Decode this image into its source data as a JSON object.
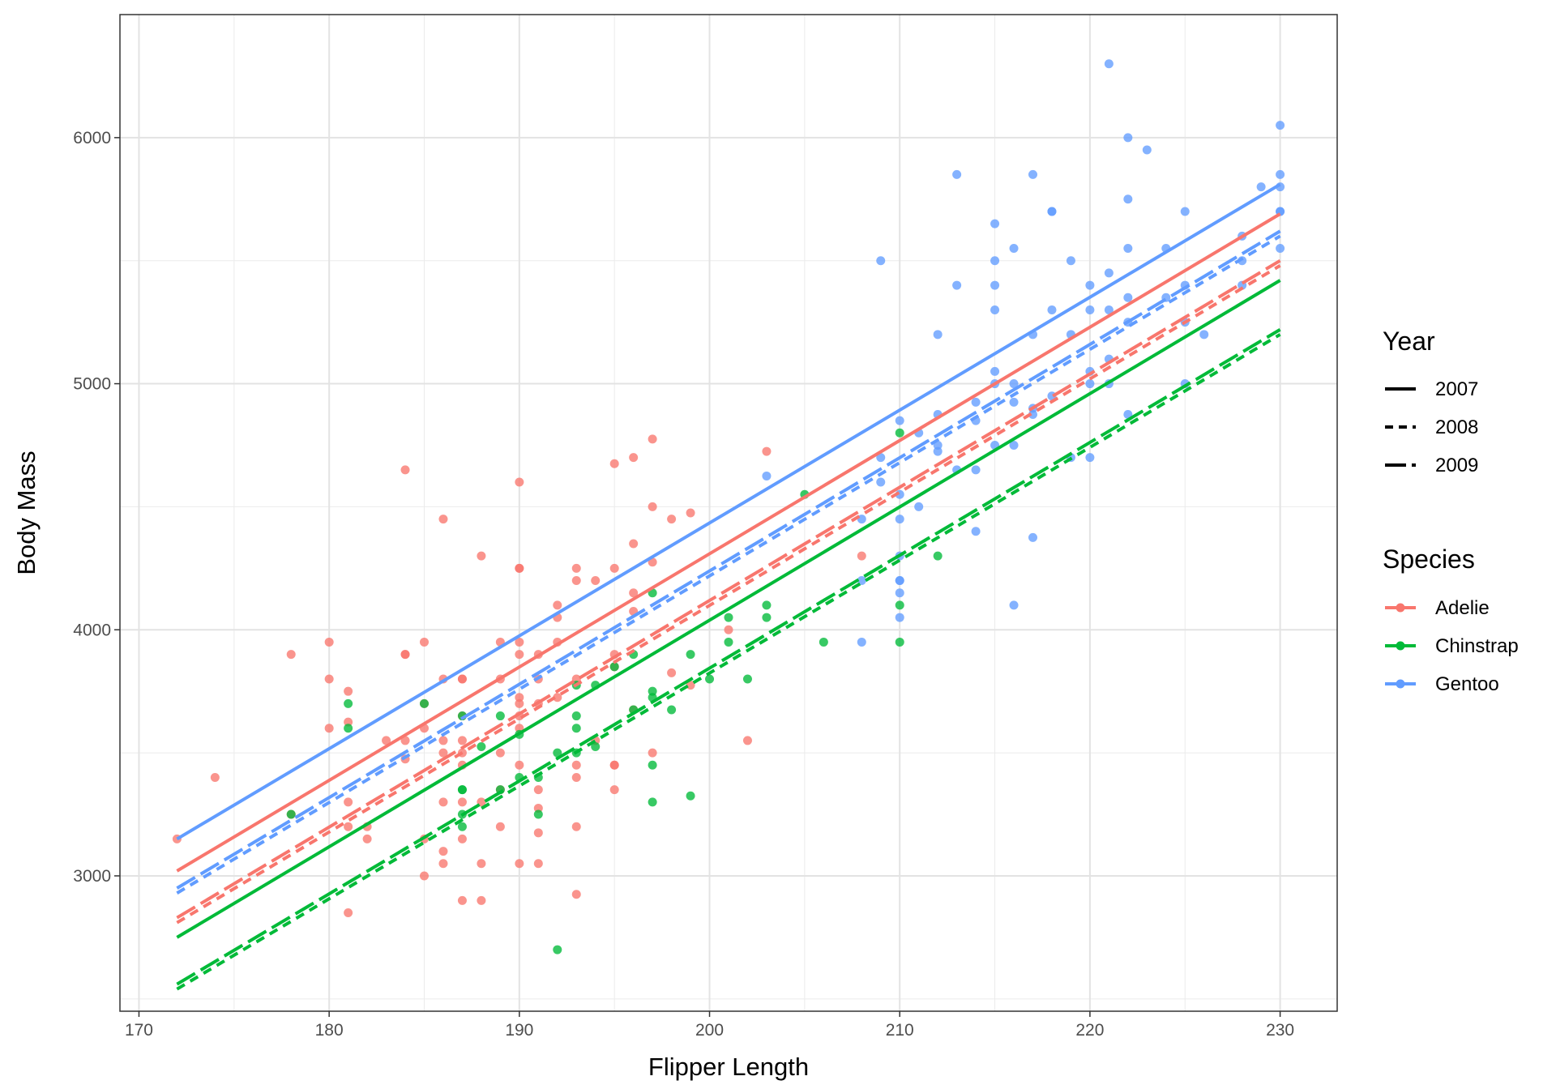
{
  "chart_data": {
    "type": "scatter",
    "title": "",
    "xlabel": "Flipper Length",
    "ylabel": "Body Mass",
    "xlim": [
      169,
      233
    ],
    "ylim": [
      2450,
      6500
    ],
    "xticks": [
      170,
      180,
      190,
      200,
      210,
      220,
      230
    ],
    "yticks": [
      3000,
      4000,
      5000,
      6000
    ],
    "grid": true,
    "legend_position": "right",
    "legends": [
      {
        "title": "Year",
        "entries": [
          "2007",
          "2008",
          "2009"
        ],
        "dash_styles": [
          "solid",
          "dashed",
          "longdash"
        ]
      },
      {
        "title": "Species",
        "entries": [
          "Adelie",
          "Chinstrap",
          "Gentoo"
        ]
      }
    ],
    "species_colors": {
      "Adelie": "#F8766D",
      "Chinstrap": "#00BA38",
      "Gentoo": "#619CFF"
    },
    "fit_lines": [
      {
        "species": "Gentoo",
        "year": "2007",
        "dash": "solid",
        "x": [
          172,
          230
        ],
        "y": [
          3150,
          5810
        ]
      },
      {
        "species": "Adelie",
        "year": "2007",
        "dash": "solid",
        "x": [
          172,
          230
        ],
        "y": [
          3020,
          5690
        ]
      },
      {
        "species": "Chinstrap",
        "year": "2007",
        "dash": "solid",
        "x": [
          172,
          230
        ],
        "y": [
          2750,
          5420
        ]
      },
      {
        "species": "Gentoo",
        "year": "2008",
        "dash": "dashed",
        "x": [
          172,
          230
        ],
        "y": [
          2930,
          5600
        ]
      },
      {
        "species": "Gentoo",
        "year": "2009",
        "dash": "longdash",
        "x": [
          172,
          230
        ],
        "y": [
          2950,
          5620
        ]
      },
      {
        "species": "Adelie",
        "year": "2008",
        "dash": "dashed",
        "x": [
          172,
          230
        ],
        "y": [
          2810,
          5480
        ]
      },
      {
        "species": "Adelie",
        "year": "2009",
        "dash": "longdash",
        "x": [
          172,
          230
        ],
        "y": [
          2830,
          5500
        ]
      },
      {
        "species": "Chinstrap",
        "year": "2008",
        "dash": "dashed",
        "x": [
          172,
          230
        ],
        "y": [
          2540,
          5200
        ]
      },
      {
        "species": "Chinstrap",
        "year": "2009",
        "dash": "longdash",
        "x": [
          172,
          230
        ],
        "y": [
          2560,
          5220
        ]
      }
    ],
    "series": [
      {
        "name": "Adelie",
        "points": [
          [
            172,
            3150
          ],
          [
            174,
            3400
          ],
          [
            178,
            3900
          ],
          [
            178,
            3250
          ],
          [
            180,
            3950
          ],
          [
            180,
            3800
          ],
          [
            180,
            3600
          ],
          [
            181,
            3750
          ],
          [
            181,
            3625
          ],
          [
            181,
            3300
          ],
          [
            181,
            3200
          ],
          [
            181,
            2850
          ],
          [
            182,
            3200
          ],
          [
            182,
            3150
          ],
          [
            183,
            3550
          ],
          [
            184,
            4650
          ],
          [
            184,
            3900
          ],
          [
            184,
            3900
          ],
          [
            184,
            3550
          ],
          [
            184,
            3475
          ],
          [
            185,
            3950
          ],
          [
            185,
            3700
          ],
          [
            185,
            3600
          ],
          [
            185,
            3150
          ],
          [
            185,
            3000
          ],
          [
            186,
            4450
          ],
          [
            186,
            3800
          ],
          [
            186,
            3550
          ],
          [
            186,
            3500
          ],
          [
            186,
            3300
          ],
          [
            186,
            3100
          ],
          [
            186,
            3050
          ],
          [
            187,
            3800
          ],
          [
            187,
            3800
          ],
          [
            187,
            3650
          ],
          [
            187,
            3550
          ],
          [
            187,
            3500
          ],
          [
            187,
            3450
          ],
          [
            187,
            3300
          ],
          [
            187,
            3150
          ],
          [
            187,
            2900
          ],
          [
            188,
            4300
          ],
          [
            188,
            3300
          ],
          [
            188,
            3050
          ],
          [
            188,
            2900
          ],
          [
            189,
            3950
          ],
          [
            189,
            3800
          ],
          [
            189,
            3500
          ],
          [
            189,
            3350
          ],
          [
            189,
            3200
          ],
          [
            190,
            4600
          ],
          [
            190,
            4250
          ],
          [
            190,
            4250
          ],
          [
            190,
            3950
          ],
          [
            190,
            3900
          ],
          [
            190,
            3725
          ],
          [
            190,
            3700
          ],
          [
            190,
            3650
          ],
          [
            190,
            3600
          ],
          [
            190,
            3450
          ],
          [
            190,
            3050
          ],
          [
            191,
            3900
          ],
          [
            191,
            3800
          ],
          [
            191,
            3700
          ],
          [
            191,
            3350
          ],
          [
            191,
            3275
          ],
          [
            191,
            3175
          ],
          [
            191,
            3050
          ],
          [
            192,
            4100
          ],
          [
            192,
            4050
          ],
          [
            192,
            3950
          ],
          [
            192,
            3725
          ],
          [
            193,
            4250
          ],
          [
            193,
            4200
          ],
          [
            193,
            3800
          ],
          [
            193,
            3450
          ],
          [
            193,
            3400
          ],
          [
            193,
            3200
          ],
          [
            193,
            2925
          ],
          [
            194,
            4200
          ],
          [
            194,
            3550
          ],
          [
            195,
            4675
          ],
          [
            195,
            4250
          ],
          [
            195,
            3900
          ],
          [
            195,
            3850
          ],
          [
            195,
            3450
          ],
          [
            195,
            3450
          ],
          [
            195,
            3350
          ],
          [
            196,
            4700
          ],
          [
            196,
            4350
          ],
          [
            196,
            4150
          ],
          [
            196,
            4075
          ],
          [
            196,
            3675
          ],
          [
            197,
            4775
          ],
          [
            197,
            4500
          ],
          [
            197,
            4275
          ],
          [
            197,
            3500
          ],
          [
            198,
            4450
          ],
          [
            198,
            3825
          ],
          [
            199,
            4475
          ],
          [
            199,
            3775
          ],
          [
            201,
            4000
          ],
          [
            202,
            3550
          ],
          [
            203,
            4725
          ],
          [
            208,
            4300
          ]
        ]
      },
      {
        "name": "Chinstrap",
        "points": [
          [
            178,
            3250
          ],
          [
            181,
            3700
          ],
          [
            181,
            3600
          ],
          [
            185,
            3700
          ],
          [
            187,
            3650
          ],
          [
            187,
            3350
          ],
          [
            187,
            3350
          ],
          [
            187,
            3250
          ],
          [
            187,
            3200
          ],
          [
            188,
            3525
          ],
          [
            189,
            3650
          ],
          [
            189,
            3350
          ],
          [
            190,
            3575
          ],
          [
            190,
            3400
          ],
          [
            191,
            3400
          ],
          [
            191,
            3250
          ],
          [
            192,
            3500
          ],
          [
            192,
            2700
          ],
          [
            193,
            3775
          ],
          [
            193,
            3650
          ],
          [
            193,
            3600
          ],
          [
            193,
            3500
          ],
          [
            194,
            3525
          ],
          [
            194,
            3775
          ],
          [
            195,
            3850
          ],
          [
            196,
            3900
          ],
          [
            196,
            3675
          ],
          [
            197,
            4150
          ],
          [
            197,
            3750
          ],
          [
            197,
            3725
          ],
          [
            197,
            3450
          ],
          [
            197,
            3300
          ],
          [
            198,
            3675
          ],
          [
            199,
            3900
          ],
          [
            199,
            3325
          ],
          [
            200,
            3800
          ],
          [
            201,
            4050
          ],
          [
            201,
            3950
          ],
          [
            202,
            3800
          ],
          [
            203,
            4100
          ],
          [
            203,
            4050
          ],
          [
            205,
            4550
          ],
          [
            206,
            3950
          ],
          [
            210,
            4800
          ],
          [
            210,
            4100
          ],
          [
            210,
            3950
          ],
          [
            212,
            4300
          ]
        ]
      },
      {
        "name": "Gentoo",
        "points": [
          [
            203,
            4625
          ],
          [
            208,
            4450
          ],
          [
            208,
            4200
          ],
          [
            208,
            3950
          ],
          [
            209,
            5500
          ],
          [
            209,
            4700
          ],
          [
            209,
            4600
          ],
          [
            210,
            4850
          ],
          [
            210,
            4550
          ],
          [
            210,
            4450
          ],
          [
            210,
            4300
          ],
          [
            210,
            4200
          ],
          [
            210,
            4200
          ],
          [
            210,
            4150
          ],
          [
            210,
            4050
          ],
          [
            211,
            4800
          ],
          [
            211,
            4500
          ],
          [
            212,
            5200
          ],
          [
            212,
            4875
          ],
          [
            212,
            4750
          ],
          [
            212,
            4725
          ],
          [
            213,
            5850
          ],
          [
            213,
            5400
          ],
          [
            213,
            4650
          ],
          [
            214,
            4925
          ],
          [
            214,
            4850
          ],
          [
            214,
            4650
          ],
          [
            214,
            4400
          ],
          [
            215,
            5650
          ],
          [
            215,
            5500
          ],
          [
            215,
            5400
          ],
          [
            215,
            5300
          ],
          [
            215,
            5050
          ],
          [
            215,
            5000
          ],
          [
            215,
            4750
          ],
          [
            216,
            5550
          ],
          [
            216,
            5000
          ],
          [
            216,
            4925
          ],
          [
            216,
            4750
          ],
          [
            216,
            4100
          ],
          [
            217,
            5850
          ],
          [
            217,
            5200
          ],
          [
            217,
            4900
          ],
          [
            217,
            4875
          ],
          [
            217,
            4375
          ],
          [
            218,
            5700
          ],
          [
            218,
            5700
          ],
          [
            218,
            5300
          ],
          [
            218,
            4950
          ],
          [
            219,
            5500
          ],
          [
            219,
            5200
          ],
          [
            219,
            4700
          ],
          [
            220,
            5400
          ],
          [
            220,
            5300
          ],
          [
            220,
            5050
          ],
          [
            220,
            5000
          ],
          [
            220,
            4700
          ],
          [
            221,
            6300
          ],
          [
            221,
            5450
          ],
          [
            221,
            5300
          ],
          [
            221,
            5100
          ],
          [
            221,
            5000
          ],
          [
            222,
            6000
          ],
          [
            222,
            5750
          ],
          [
            222,
            5550
          ],
          [
            222,
            5350
          ],
          [
            222,
            5250
          ],
          [
            222,
            4875
          ],
          [
            223,
            5950
          ],
          [
            224,
            5550
          ],
          [
            224,
            5350
          ],
          [
            225,
            5700
          ],
          [
            225,
            5400
          ],
          [
            225,
            5250
          ],
          [
            225,
            5000
          ],
          [
            226,
            5200
          ],
          [
            228,
            5600
          ],
          [
            228,
            5500
          ],
          [
            228,
            5400
          ],
          [
            229,
            5800
          ],
          [
            230,
            6050
          ],
          [
            230,
            5850
          ],
          [
            230,
            5800
          ],
          [
            230,
            5700
          ],
          [
            230,
            5700
          ],
          [
            230,
            5550
          ]
        ]
      }
    ]
  }
}
